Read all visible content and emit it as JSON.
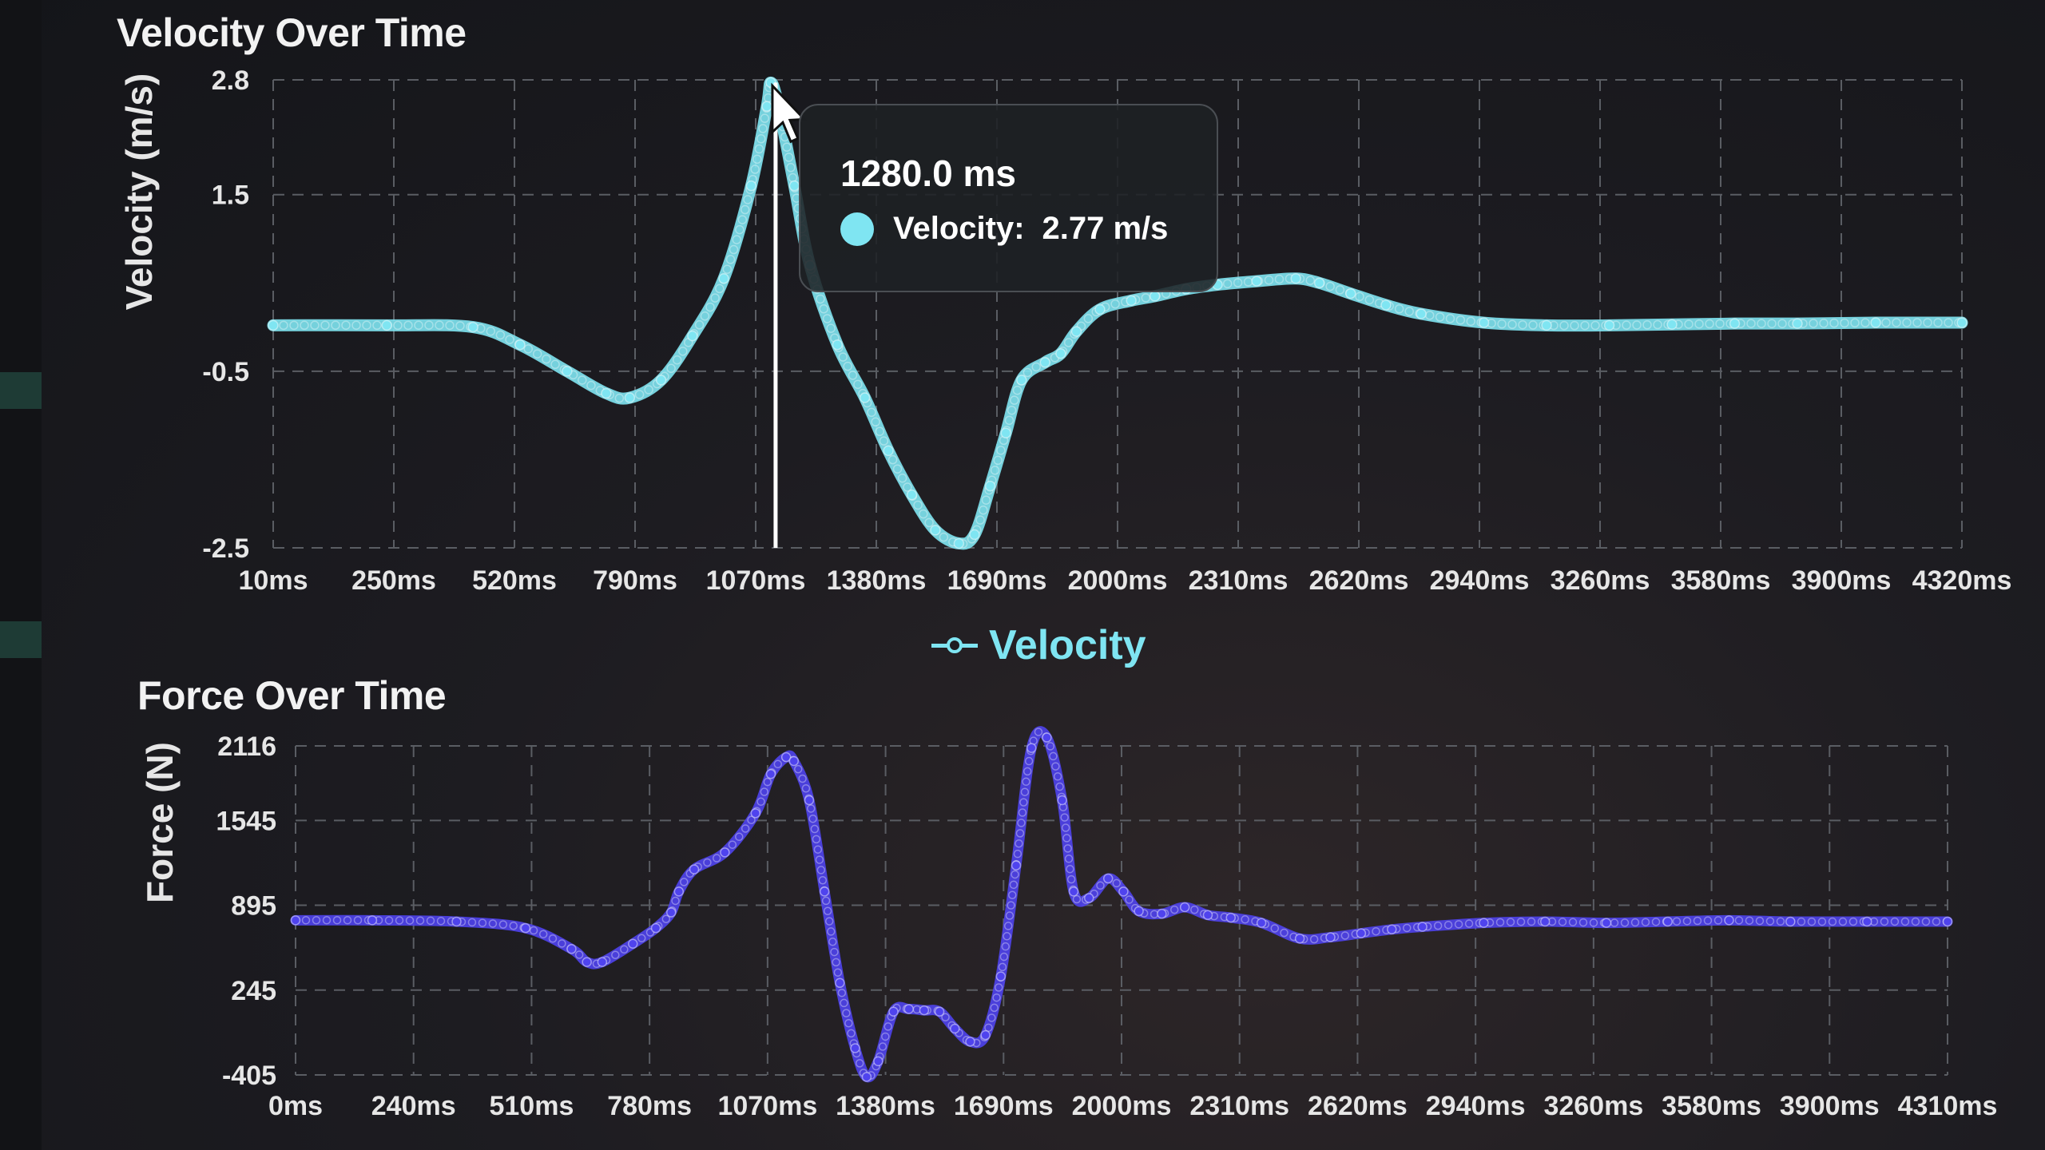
{
  "colors": {
    "velocity": "#7fe5f2",
    "force": "#4f43ee",
    "grid": "#5a5d63",
    "axis_text": "#e6e6e6",
    "crosshair": "#ffffff"
  },
  "tooltip": {
    "title": "1280.0 ms",
    "series_label": "Velocity:",
    "value_text": "2.77 m/s"
  },
  "legend": {
    "velocity_label": "Velocity"
  },
  "chart_data": [
    {
      "type": "line",
      "title": "Velocity Over Time",
      "xlabel": "",
      "ylabel": "Velocity (m/s)",
      "x_unit": "ms",
      "x_tick_labels": [
        "10ms",
        "250ms",
        "520ms",
        "790ms",
        "1070ms",
        "1380ms",
        "1690ms",
        "2000ms",
        "2310ms",
        "2620ms",
        "2940ms",
        "3260ms",
        "3580ms",
        "3900ms",
        "4320ms"
      ],
      "y_ticks": [
        2.8,
        1.5,
        -0.5,
        -2.5
      ],
      "ylim": [
        -2.5,
        2.8
      ],
      "xlim": [
        10,
        4320
      ],
      "grid": true,
      "series": [
        {
          "name": "Velocity",
          "x": [
            10,
            300,
            520,
            640,
            760,
            860,
            920,
            1000,
            1080,
            1160,
            1230,
            1270,
            1280,
            1300,
            1340,
            1380,
            1450,
            1520,
            1580,
            1640,
            1700,
            1760,
            1800,
            1840,
            1880,
            1920,
            1980,
            2020,
            2060,
            2120,
            2200,
            2260,
            2340,
            2420,
            2520,
            2620,
            2680,
            2760,
            2850,
            2940,
            3100,
            3260,
            3420,
            3580,
            3740,
            3900,
            4100,
            4320
          ],
          "y": [
            0.02,
            0.02,
            0.0,
            -0.2,
            -0.5,
            -0.75,
            -0.8,
            -0.6,
            -0.1,
            0.55,
            1.6,
            2.5,
            2.77,
            2.5,
            1.6,
            0.7,
            -0.2,
            -0.8,
            -1.4,
            -1.9,
            -2.3,
            -2.45,
            -2.35,
            -1.8,
            -1.2,
            -0.6,
            -0.4,
            -0.3,
            -0.05,
            0.2,
            0.3,
            0.35,
            0.43,
            0.48,
            0.52,
            0.55,
            0.5,
            0.38,
            0.25,
            0.15,
            0.05,
            0.02,
            0.02,
            0.03,
            0.04,
            0.04,
            0.05,
            0.05
          ]
        }
      ]
    },
    {
      "type": "line",
      "title": "Force Over Time",
      "xlabel": "",
      "ylabel": "Force (N)",
      "x_unit": "ms",
      "x_tick_labels": [
        "0ms",
        "240ms",
        "510ms",
        "780ms",
        "1070ms",
        "1380ms",
        "1690ms",
        "2000ms",
        "2310ms",
        "2620ms",
        "2940ms",
        "3260ms",
        "3580ms",
        "3900ms",
        "4310ms"
      ],
      "y_ticks": [
        2116,
        1545,
        895,
        245,
        -405
      ],
      "ylim": [
        -405,
        2116
      ],
      "xlim": [
        0,
        4310
      ],
      "grid": true,
      "series": [
        {
          "name": "",
          "x": [
            0,
            200,
            420,
            600,
            720,
            760,
            800,
            880,
            940,
            980,
            1000,
            1040,
            1120,
            1200,
            1240,
            1280,
            1300,
            1340,
            1380,
            1420,
            1460,
            1490,
            1520,
            1560,
            1600,
            1640,
            1680,
            1720,
            1760,
            1800,
            1840,
            1880,
            1920,
            1960,
            2000,
            2030,
            2070,
            2120,
            2160,
            2200,
            2260,
            2320,
            2380,
            2440,
            2520,
            2620,
            2700,
            2780,
            2860,
            2940,
            3100,
            3260,
            3420,
            3580,
            3740,
            3900,
            4100,
            4310
          ],
          "y": [
            780,
            780,
            770,
            720,
            560,
            460,
            460,
            600,
            720,
            840,
            1000,
            1170,
            1300,
            1600,
            1900,
            2030,
            2000,
            1700,
            1000,
            300,
            -200,
            -420,
            -300,
            80,
            100,
            90,
            80,
            -50,
            -150,
            -100,
            350,
            1200,
            2100,
            2180,
            1700,
            1000,
            950,
            1100,
            1000,
            850,
            830,
            880,
            820,
            800,
            760,
            640,
            650,
            680,
            710,
            730,
            760,
            770,
            760,
            770,
            780,
            770,
            770,
            770
          ]
        }
      ]
    }
  ]
}
